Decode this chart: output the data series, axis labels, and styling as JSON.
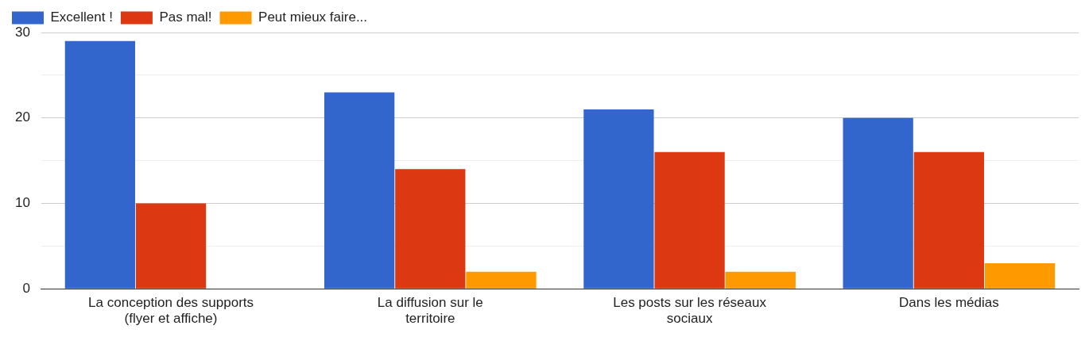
{
  "chart_data": {
    "type": "bar",
    "categories": [
      "La conception des supports (flyer et affiche)",
      "La diffusion sur le territoire",
      "Les posts sur les réseaux sociaux",
      "Dans les médias"
    ],
    "series": [
      {
        "name": "Excellent !",
        "color": "#3366cc",
        "values": [
          29,
          23,
          21,
          20
        ]
      },
      {
        "name": "Pas mal!",
        "color": "#dc3912",
        "values": [
          10,
          14,
          16,
          16
        ]
      },
      {
        "name": "Peut mieux faire...",
        "color": "#ff9900",
        "values": [
          0,
          2,
          2,
          3
        ]
      }
    ],
    "ylim": [
      0,
      30
    ],
    "yticks": [
      0,
      {
        "value": 5,
        "label": null
      },
      10,
      {
        "value": 15,
        "label": null
      },
      20,
      {
        "value": 25,
        "label": null
      },
      30
    ],
    "grid": "y",
    "legend": "top left"
  }
}
